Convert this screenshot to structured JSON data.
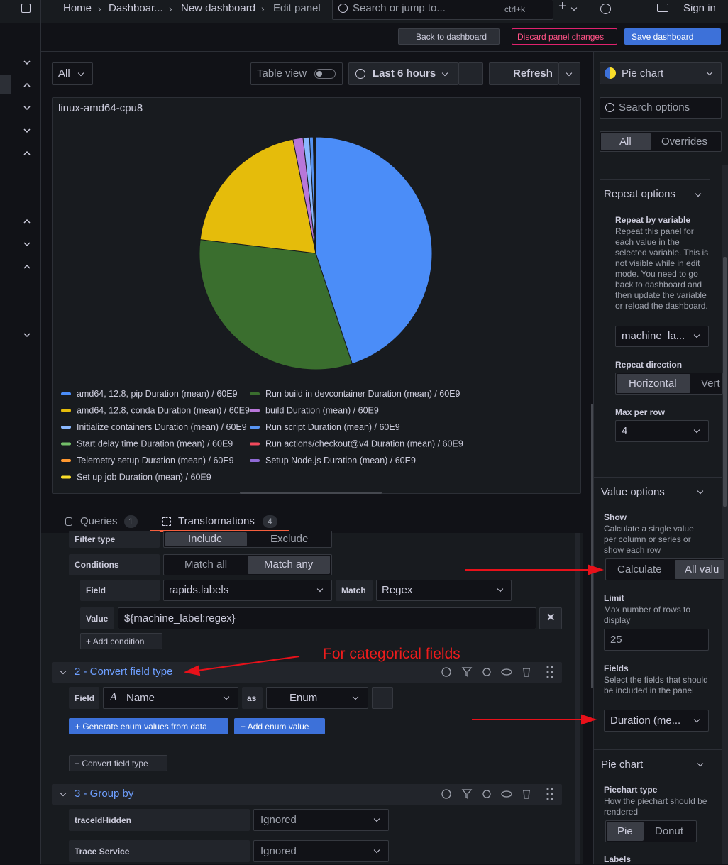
{
  "topbar": {
    "breadcrumbs": [
      "Home",
      "Dashboar...",
      "New dashboard",
      "Edit panel"
    ],
    "search": "Search or jump to...",
    "shortcut": "ctrl+k",
    "sign_in": "Sign in"
  },
  "toolbar": {
    "back": "Back to dashboard",
    "discard": "Discard panel changes",
    "save": "Save dashboard"
  },
  "panel_controls": {
    "variable": "All",
    "table_view": "Table view",
    "time_range": "Last 6 hours",
    "refresh": "Refresh"
  },
  "chart_data": {
    "type": "pie",
    "title": "linux-amd64-cpu8",
    "categories": [
      "amd64, 12.8, pip Duration (mean) / 60E9",
      "Run build in devcontainer Duration (mean) / 60E9",
      "amd64, 12.8, conda Duration (mean) / 60E9",
      "build Duration (mean) / 60E9",
      "Initialize containers Duration (mean) / 60E9",
      "Run script Duration (mean) / 60E9",
      "Start delay time Duration (mean) / 60E9",
      "Run actions/checkout@v4 Duration (mean) / 60E9",
      "Telemetry setup Duration (mean) / 60E9",
      "Setup Node.js Duration (mean) / 60E9",
      "Set up job Duration (mean) / 60E9"
    ],
    "values": [
      45,
      32,
      20,
      1.4,
      0.9,
      0.5,
      0.1,
      0.1,
      0.05,
      0.05,
      0.05
    ],
    "colors": [
      "#4b8df8",
      "#3a6e2e",
      "#e5bc0b",
      "#b877d9",
      "#8ab8ff",
      "#5794f2",
      "#73bf69",
      "#f2495c",
      "#ff9830",
      "#8f6ad5",
      "#fade2a"
    ]
  },
  "tabs": {
    "queries": "Queries",
    "queries_count": 1,
    "transformations": "Transformations",
    "transformations_count": 4
  },
  "transform_1": {
    "filter_type_label": "Filter type",
    "include": "Include",
    "exclude": "Exclude",
    "conditions_label": "Conditions",
    "match_all": "Match all",
    "match_any": "Match any",
    "field_label": "Field",
    "field": "rapids.labels",
    "match_label": "Match",
    "match": "Regex",
    "value_label": "Value",
    "value": "${machine_label:regex}",
    "add_condition": "Add condition"
  },
  "annotation": "For categorical fields",
  "transform_2": {
    "title": "2 - Convert field type",
    "field_label": "Field",
    "field": "Name",
    "as": "as",
    "type": "Enum",
    "generate": "Generate enum values from data",
    "add_enum": "Add enum value",
    "add_convert": "Convert field type"
  },
  "transform_3": {
    "title": "3 - Group by",
    "rows": [
      [
        "traceIdHidden",
        "Ignored"
      ],
      [
        "Trace Service",
        "Ignored"
      ]
    ]
  },
  "options": {
    "visualization": "Pie chart",
    "search": "Search options",
    "all": "All",
    "overrides": "Overrides",
    "repeat": {
      "title": "Repeat options",
      "by_variable": "Repeat by variable",
      "by_variable_desc": "Repeat this panel for each value in the selected variable. This is not visible while in edit mode. You need to go back to dashboard and then update the variable or reload the dashboard.",
      "variable": "machine_la...",
      "direction": "Repeat direction",
      "horizontal": "Horizontal",
      "vertical": "Vert",
      "max_per_row": "Max per row",
      "max_value": "4"
    },
    "value_options": {
      "title": "Value options",
      "show": "Show",
      "show_desc": "Calculate a single value per column or series or show each row",
      "calculate": "Calculate",
      "all_values": "All valu",
      "limit": "Limit",
      "limit_desc": "Max number of rows to display",
      "limit_placeholder": "25",
      "fields": "Fields",
      "fields_desc": "Select the fields that should be included in the panel",
      "fields_value": "Duration (me..."
    },
    "pie_chart": {
      "title": "Pie chart",
      "type": "Piechart type",
      "type_desc": "How the piechart should be rendered",
      "pie": "Pie",
      "donut": "Donut",
      "labels": "Labels"
    }
  }
}
